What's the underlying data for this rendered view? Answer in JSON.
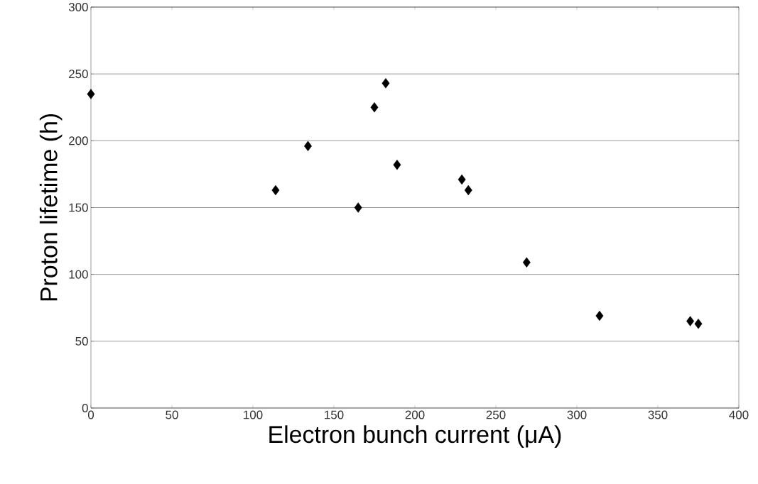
{
  "chart_data": {
    "type": "scatter",
    "xlabel": "Electron bunch current (μA)",
    "ylabel": "Proton lifetime (h)",
    "x": [
      0,
      114,
      134,
      165,
      175,
      182,
      189,
      229,
      233,
      269,
      314,
      370,
      375
    ],
    "values": [
      235,
      163,
      196,
      150,
      225,
      243,
      182,
      171,
      163,
      109,
      69,
      65,
      63
    ],
    "color": "#000000",
    "marker": "diamond",
    "xlim": [
      0,
      400
    ],
    "xticks": [
      0,
      50,
      100,
      150,
      200,
      250,
      300,
      350,
      400
    ],
    "ylim": [
      0,
      300
    ],
    "yticks": [
      0,
      50,
      100,
      150,
      200,
      250,
      300
    ],
    "grid": "y"
  }
}
